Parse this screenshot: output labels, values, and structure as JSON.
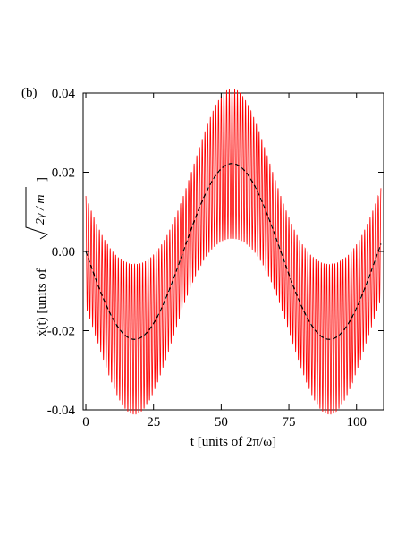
{
  "chart_data": {
    "type": "line",
    "panel_label": "(b)",
    "xlabel": "t [units of 2π/ω]",
    "ylabel_prefix": "ẋ(t) [units of",
    "ylabel_sqrt": "2γ / m",
    "ylabel_suffix": "]",
    "xlim": [
      -1,
      110
    ],
    "ylim": [
      -0.04,
      0.04
    ],
    "x_ticks": [
      0,
      25,
      50,
      75,
      100
    ],
    "x_tick_labels": [
      "0",
      "25",
      "50",
      "75",
      "100"
    ],
    "y_ticks": [
      0.04,
      0.02,
      0.0,
      -0.02,
      -0.04
    ],
    "y_tick_labels": [
      "0.04",
      "0.02",
      "0.00",
      "-0.02",
      "-0.04"
    ],
    "grid": false,
    "series": [
      {
        "style": "solid",
        "color": "#ff0000",
        "description_of_shape": "fast oscillation (period 1) with envelope swinging between about ±0.019 and ±0.039, centered on the slow curve",
        "t_start": 0,
        "t_end": 109,
        "fast_period": 1,
        "fast_amplitude_min": 0.014,
        "fast_amplitude_max": 0.019,
        "slow_amplitude": 0.0222,
        "slow_period": 72,
        "slow_phase_offset": 0
      },
      {
        "style": "dashed",
        "color": "#000000",
        "t_start": 0,
        "t_end": 109,
        "amplitude": 0.0222,
        "period": 72,
        "minima_at": [
          18,
          90
        ],
        "maxima_at": [
          54
        ]
      }
    ]
  }
}
